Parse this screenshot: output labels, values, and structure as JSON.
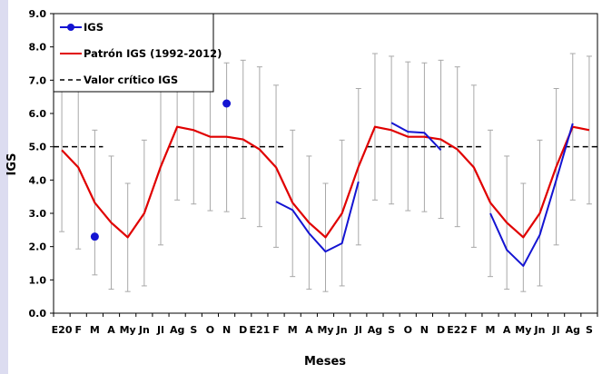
{
  "colors": {
    "igs": "#1414d2",
    "patron": "#e00000",
    "critico": "#000000",
    "errorbar": "#a8a8a8",
    "background_strip": "#dcdcf0"
  },
  "chart_data": {
    "type": "line",
    "xlabel": "Meses",
    "ylabel": "IGS",
    "ylim": [
      0,
      9
    ],
    "yticks": [
      "0.0",
      "1.0",
      "2.0",
      "3.0",
      "4.0",
      "5.0",
      "6.0",
      "7.0",
      "8.0",
      "9.0"
    ],
    "categories": [
      "E20",
      "F",
      "M",
      "A",
      "My",
      "Jn",
      "Jl",
      "Ag",
      "S",
      "O",
      "N",
      "D",
      "E21",
      "F",
      "M",
      "A",
      "My",
      "Jn",
      "Jl",
      "Ag",
      "S",
      "O",
      "N",
      "D",
      "E22",
      "F",
      "M",
      "A",
      "My",
      "Jn",
      "Jl",
      "Ag",
      "S"
    ],
    "legend_position": "top-left",
    "grid": false,
    "series": [
      {
        "name": "IGS",
        "style": "blue line with markers",
        "values": [
          null,
          null,
          2.3,
          null,
          null,
          null,
          null,
          null,
          null,
          null,
          6.3,
          null,
          null,
          3.35,
          3.1,
          2.4,
          1.85,
          2.1,
          3.95,
          null,
          5.72,
          5.45,
          5.42,
          4.9,
          null,
          null,
          3.0,
          1.9,
          1.42,
          2.35,
          4.0,
          5.7,
          null
        ]
      },
      {
        "name": "Patrón IGS (1992-2012)",
        "style": "red line",
        "values": [
          4.9,
          4.38,
          3.32,
          2.72,
          2.28,
          3.0,
          4.4,
          5.6,
          5.5,
          5.3,
          5.3,
          5.22,
          4.92,
          4.38,
          3.32,
          2.72,
          2.28,
          3.0,
          4.4,
          5.6,
          5.5,
          5.3,
          5.3,
          5.22,
          4.92,
          4.38,
          3.32,
          2.72,
          2.28,
          3.0,
          4.4,
          5.6,
          5.5
        ],
        "error_low": [
          2.45,
          1.93,
          1.15,
          0.72,
          0.65,
          0.82,
          2.05,
          3.4,
          3.28,
          3.08,
          3.05,
          2.85,
          2.6,
          1.98,
          1.1,
          0.72,
          0.65,
          0.82,
          2.05,
          3.4,
          3.28,
          3.08,
          3.05,
          2.85,
          2.6,
          1.98,
          1.1,
          0.72,
          0.65,
          0.82,
          2.05,
          3.4,
          3.28
        ],
        "error_high": [
          7.4,
          6.85,
          5.5,
          4.72,
          3.9,
          5.2,
          6.75,
          7.8,
          7.72,
          7.55,
          7.52,
          7.6,
          7.4,
          6.85,
          5.5,
          4.72,
          3.9,
          5.2,
          6.75,
          7.8,
          7.72,
          7.55,
          7.52,
          7.6,
          7.4,
          6.85,
          5.5,
          4.72,
          3.9,
          5.2,
          6.75,
          7.8,
          7.72
        ]
      },
      {
        "name": "Valor crítico IGS",
        "style": "dashed black line",
        "value": 5.0,
        "segments": [
          [
            0,
            2
          ],
          [
            7,
            13
          ],
          [
            19,
            25
          ],
          [
            31,
            32
          ]
        ]
      }
    ]
  }
}
